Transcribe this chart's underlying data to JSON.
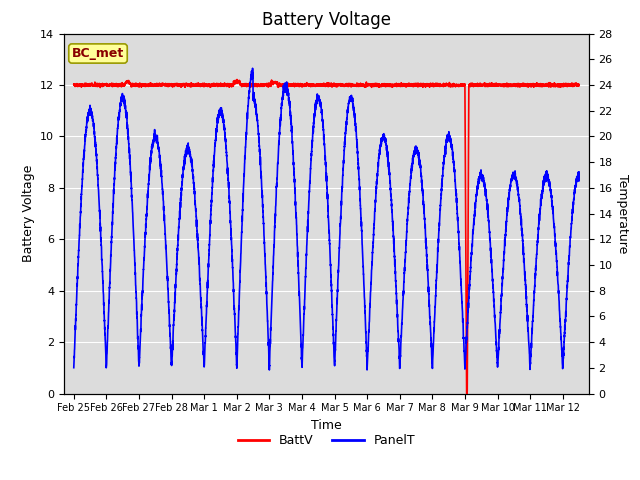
{
  "title": "Battery Voltage",
  "xlabel": "Time",
  "ylabel_left": "Battery Voltage",
  "ylabel_right": "Temperature",
  "annotation": "BC_met",
  "ylim_left": [
    0,
    14
  ],
  "ylim_right": [
    0,
    28
  ],
  "yticks_left": [
    0,
    2,
    4,
    6,
    8,
    10,
    12,
    14
  ],
  "yticks_right": [
    0,
    2,
    4,
    6,
    8,
    10,
    12,
    14,
    16,
    18,
    20,
    22,
    24,
    26,
    28
  ],
  "x_tick_labels": [
    "Feb 25",
    "Feb 26",
    "Feb 27",
    "Feb 28",
    "Mar 1",
    "Mar 2",
    "Mar 3",
    "Mar 4",
    "Mar 5",
    "Mar 6",
    "Mar 7",
    "Mar 8",
    "Mar 9",
    "Mar 10",
    "Mar 11",
    "Mar 12"
  ],
  "batt_color": "#ff0000",
  "panel_color": "#0000ff",
  "background_color": "#dcdcdc",
  "grid_color": "#ffffff",
  "annotation_facecolor": "#ffff99",
  "annotation_edgecolor": "#999900",
  "annotation_textcolor": "#880000",
  "title_fontsize": 12,
  "axis_label_fontsize": 9,
  "tick_fontsize": 8,
  "legend_fontsize": 9
}
